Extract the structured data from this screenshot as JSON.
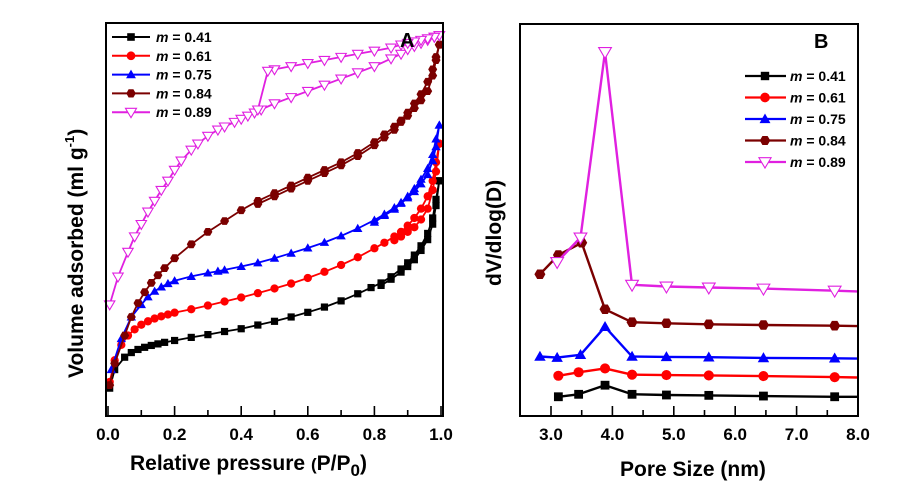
{
  "chart_data": [
    {
      "type": "line",
      "panel_label": "A",
      "title": "",
      "xlabel": "Relative pressure (P/P0)",
      "xlabel_main": "Relative pressure ",
      "xlabel_paren_open": "(",
      "xlabel_P": "P/P",
      "xlabel_sub": "0",
      "xlabel_paren_close": ")",
      "ylabel": "Volume adsorbed (ml g-1)",
      "ylabel_main": "Volume adsorbed (ml g",
      "ylabel_sup": "-1",
      "ylabel_close": ")",
      "xlim": [
        0.0,
        1.0
      ],
      "ylim": [
        0,
        100
      ],
      "y_units": "arbitrary (no tick labels)",
      "xticks": [
        "0.0",
        "0.2",
        "0.4",
        "0.6",
        "0.8",
        "1.0"
      ],
      "xtick_values": [
        0.0,
        0.2,
        0.4,
        0.6,
        0.8,
        1.0
      ],
      "minor_xticks": [
        0.1,
        0.3,
        0.5,
        0.7,
        0.9
      ],
      "grid": false,
      "legend_position": "top-left",
      "series": [
        {
          "name": "m = 0.41",
          "m_value": "0.41",
          "color": "#000000",
          "marker": "square",
          "adsorption": {
            "x": [
              0.005,
              0.02,
              0.05,
              0.07,
              0.09,
              0.11,
              0.13,
              0.15,
              0.17,
              0.2,
              0.25,
              0.3,
              0.35,
              0.4,
              0.45,
              0.5,
              0.55,
              0.6,
              0.65,
              0.7,
              0.75,
              0.79,
              0.82,
              0.85,
              0.88,
              0.9,
              0.92,
              0.94,
              0.96,
              0.975,
              0.985,
              0.995
            ],
            "y": [
              3,
              9,
              13,
              14.5,
              15.5,
              16.2,
              16.8,
              17.3,
              17.8,
              18.4,
              19.4,
              20.3,
              21.3,
              22.2,
              23.4,
              24.6,
              26,
              27.5,
              29.2,
              31.2,
              33.5,
              35.5,
              37,
              39,
              41.5,
              43.5,
              46,
              49,
              53,
              58,
              64,
              70
            ]
          },
          "desorption": {
            "x": [
              0.995,
              0.985,
              0.975,
              0.96,
              0.94,
              0.92,
              0.9,
              0.88,
              0.85,
              0.82
            ],
            "y": [
              70,
              62,
              56,
              51,
              47.5,
              44.5,
              42.3,
              40.5,
              38.2,
              36.2
            ]
          }
        },
        {
          "name": "m = 0.61",
          "m_value": "0.61",
          "color": "#ff0000",
          "marker": "circle",
          "adsorption": {
            "x": [
              0.005,
              0.02,
              0.04,
              0.06,
              0.08,
              0.1,
              0.12,
              0.14,
              0.16,
              0.18,
              0.2,
              0.25,
              0.3,
              0.35,
              0.4,
              0.45,
              0.5,
              0.55,
              0.6,
              0.65,
              0.7,
              0.75,
              0.8,
              0.83,
              0.86,
              0.88,
              0.9,
              0.92,
              0.94,
              0.96,
              0.975,
              0.985,
              0.995
            ],
            "y": [
              5,
              12,
              17,
              20,
              22,
              23.5,
              24.6,
              25.5,
              26.2,
              26.8,
              27.4,
              28.5,
              29.7,
              31,
              32.3,
              33.7,
              35.2,
              36.8,
              38.6,
              40.6,
              42.8,
              45.3,
              48.2,
              50,
              52,
              53.5,
              55.5,
              58,
              61,
              65,
              70,
              76,
              82
            ]
          },
          "desorption": {
            "x": [
              0.995,
              0.985,
              0.975,
              0.96,
              0.94,
              0.92,
              0.9,
              0.88,
              0.86
            ],
            "y": [
              82,
              73,
              67,
              61,
              57.5,
              55,
              53.5,
              52,
              50.8
            ]
          }
        },
        {
          "name": "m = 0.75",
          "m_value": "0.75",
          "color": "#0000ff",
          "marker": "triangle-up",
          "adsorption": {
            "x": [
              0.01,
              0.04,
              0.07,
              0.1,
              0.12,
              0.14,
              0.16,
              0.18,
              0.2,
              0.25,
              0.3,
              0.33,
              0.35,
              0.4,
              0.45,
              0.5,
              0.55,
              0.6,
              0.65,
              0.7,
              0.75,
              0.8,
              0.83,
              0.86,
              0.88,
              0.9,
              0.92,
              0.94,
              0.96,
              0.975,
              0.985,
              0.995
            ],
            "y": [
              9,
              19,
              26,
              30,
              32.5,
              34.3,
              35.7,
              36.8,
              37.7,
              39.1,
              40.2,
              40.8,
              41.2,
              42.3,
              43.5,
              45,
              46.6,
              48.3,
              50.1,
              52.2,
              54.6,
              57.3,
              59.2,
              61.3,
              63,
              65,
              67.5,
              70.5,
              74,
              78.5,
              83.5,
              88
            ]
          },
          "desorption": {
            "x": [
              0.995,
              0.985,
              0.975,
              0.96,
              0.94,
              0.92,
              0.9,
              0.88,
              0.86,
              0.83,
              0.8
            ],
            "y": [
              88,
              81,
              76.5,
              72,
              69,
              66.5,
              64.5,
              62.7,
              60.8,
              58.8,
              56.6
            ]
          }
        },
        {
          "name": "m = 0.84",
          "m_value": "0.84",
          "color": "#7b0000",
          "marker": "hexagon",
          "adsorption": {
            "x": [
              0.005,
              0.02,
              0.05,
              0.07,
              0.09,
              0.11,
              0.13,
              0.15,
              0.17,
              0.2,
              0.25,
              0.3,
              0.35,
              0.4,
              0.45,
              0.5,
              0.55,
              0.6,
              0.65,
              0.7,
              0.75,
              0.8,
              0.83,
              0.86,
              0.88,
              0.9,
              0.92,
              0.94,
              0.96,
              0.975,
              0.985,
              0.995
            ],
            "y": [
              4,
              11,
              20,
              26,
              30.5,
              34,
              37,
              39.5,
              41.8,
              45,
              49.5,
              53.5,
              57,
              60.5,
              63.5,
              66,
              68.5,
              71,
              73.5,
              76,
              79,
              82.5,
              85,
              87.5,
              89.5,
              92,
              95,
              98,
              102,
              106,
              110,
              114
            ]
          },
          "desorption": {
            "x": [
              0.995,
              0.985,
              0.975,
              0.96,
              0.94,
              0.92,
              0.9,
              0.88,
              0.86,
              0.83,
              0.8,
              0.75,
              0.7,
              0.65,
              0.6,
              0.55,
              0.5,
              0.45
            ],
            "y": [
              114,
              109,
              104,
              99,
              96,
              93.5,
              91,
              89,
              86.5,
              84,
              81.5,
              78,
              75,
              72.5,
              70,
              67.5,
              65,
              62.5
            ]
          }
        },
        {
          "name": "m = 0.89",
          "m_value": "0.89",
          "color": "#e020e0",
          "marker": "triangle-down-open",
          "adsorption": {
            "x": [
              0.005,
              0.03,
              0.06,
              0.08,
              0.1,
              0.12,
              0.14,
              0.16,
              0.18,
              0.2,
              0.22,
              0.25,
              0.27,
              0.3,
              0.33,
              0.35,
              0.38,
              0.4,
              0.42,
              0.44,
              0.46,
              0.5,
              0.55,
              0.6,
              0.65,
              0.7,
              0.75,
              0.8,
              0.85,
              0.88,
              0.9,
              0.92,
              0.94,
              0.96,
              0.98,
              0.995
            ],
            "y": [
              30,
              39,
              47,
              52,
              56,
              60,
              63.5,
              67,
              70,
              73.5,
              76.5,
              80,
              82,
              84.5,
              86.5,
              87.5,
              89,
              90,
              91,
              92,
              93,
              95,
              97,
              99,
              101,
              103,
              105,
              107,
              109.5,
              111,
              112.5,
              113.5,
              114.5,
              115.5,
              116.5,
              117
            ]
          },
          "desorption": {
            "x": [
              0.995,
              0.98,
              0.96,
              0.94,
              0.92,
              0.9,
              0.88,
              0.85,
              0.8,
              0.75,
              0.7,
              0.65,
              0.6,
              0.55,
              0.5,
              0.48,
              0.45
            ],
            "y": [
              117,
              116.5,
              116,
              115.5,
              115,
              114.5,
              114,
              113,
              112,
              111,
              110,
              109,
              108,
              107,
              106,
              105.5,
              93
            ]
          }
        }
      ]
    },
    {
      "type": "line",
      "panel_label": "B",
      "title": "",
      "xlabel": "Pore Size (nm)",
      "ylabel": "dV/dlog(D)",
      "xlim": [
        2.5,
        8.0
      ],
      "ylim": [
        0,
        100
      ],
      "y_units": "arbitrary (no tick labels)",
      "xticks": [
        "3.0",
        "4.0",
        "5.0",
        "6.0",
        "7.0",
        "8.0"
      ],
      "xtick_values": [
        3.0,
        4.0,
        5.0,
        6.0,
        7.0,
        8.0
      ],
      "minor_xticks": [
        3.5,
        4.5,
        5.5,
        6.5,
        7.5
      ],
      "grid": false,
      "legend_position": "top-right",
      "series": [
        {
          "name": "m = 0.41",
          "m_value": "0.41",
          "color": "#000000",
          "marker": "square",
          "x": [
            3.12,
            3.45,
            3.88,
            4.32,
            4.88,
            5.57,
            6.46,
            7.62,
            8.0
          ],
          "y": [
            1.5,
            2.2,
            4.8,
            2.2,
            2.0,
            1.9,
            1.7,
            1.5,
            1.5
          ]
        },
        {
          "name": "m = 0.61",
          "m_value": "0.61",
          "color": "#ff0000",
          "marker": "circle",
          "x": [
            3.12,
            3.45,
            3.88,
            4.32,
            4.88,
            5.57,
            6.46,
            7.62,
            8.0
          ],
          "y": [
            7.5,
            8.5,
            9.6,
            7.8,
            7.7,
            7.6,
            7.4,
            7.1,
            7.0
          ]
        },
        {
          "name": "m = 0.75",
          "m_value": "0.75",
          "color": "#0000ff",
          "marker": "triangle-up",
          "x": [
            2.82,
            3.1,
            3.48,
            3.88,
            4.32,
            4.88,
            5.57,
            6.46,
            7.62,
            8.0
          ],
          "y": [
            13.0,
            12.7,
            13.5,
            21.5,
            13.0,
            12.9,
            12.8,
            12.6,
            12.5,
            12.4
          ]
        },
        {
          "name": "m = 0.84",
          "m_value": "0.84",
          "color": "#7b0000",
          "marker": "hexagon",
          "x": [
            2.82,
            3.12,
            3.5,
            3.88,
            4.32,
            4.88,
            5.57,
            6.46,
            7.62,
            8.0
          ],
          "y": [
            36.5,
            42,
            45.5,
            26.5,
            22.8,
            22.5,
            22.2,
            22.0,
            21.8,
            21.7
          ]
        },
        {
          "name": "m = 0.89",
          "m_value": "0.89",
          "color": "#e020e0",
          "marker": "triangle-down-open",
          "x": [
            3.1,
            3.48,
            3.88,
            4.32,
            4.88,
            5.57,
            6.46,
            7.62,
            8.0
          ],
          "y": [
            40,
            47,
            100,
            33.5,
            33.0,
            32.7,
            32.4,
            31.8,
            31.6
          ]
        }
      ]
    }
  ]
}
